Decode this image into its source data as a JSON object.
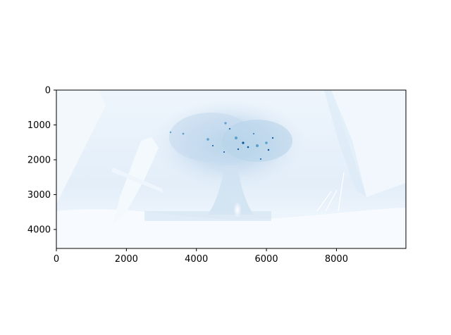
{
  "chart_data": {
    "type": "heatmap",
    "description_kind": "image",
    "colormap": "Blues",
    "colors": {
      "light": "#f7fbff",
      "mid": "#c6dbef",
      "dark": "#08519c",
      "darkest": "#08306b"
    },
    "xlim": [
      0,
      9984
    ],
    "ylim": [
      4544,
      0
    ],
    "xticks": [
      0,
      2000,
      4000,
      6000,
      8000
    ],
    "xtick_labels": [
      "0",
      "2000",
      "4000",
      "6000",
      "8000"
    ],
    "yticks": [
      0,
      1000,
      2000,
      3000,
      4000
    ],
    "ytick_labels": [
      "0",
      "1000",
      "2000",
      "3000",
      "4000"
    ],
    "title": "",
    "xlabel": "",
    "ylabel": "",
    "grid": false,
    "legend": "none"
  }
}
